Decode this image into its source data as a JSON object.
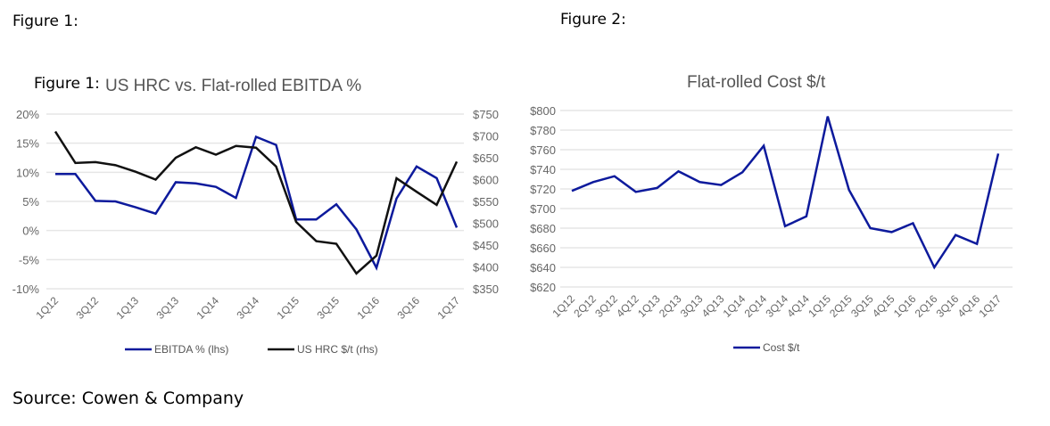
{
  "captions": {
    "fig1": "Figure 1:",
    "fig2": "Figure  2:",
    "fig1_inner": "Figure 1:",
    "source": "Source: Cowen & Company"
  },
  "chart_data": [
    {
      "type": "line",
      "title": "US HRC vs. Flat-rolled EBITDA %",
      "categories": [
        "1Q12",
        "2Q12",
        "3Q12",
        "4Q12",
        "1Q13",
        "2Q13",
        "3Q13",
        "4Q13",
        "1Q14",
        "2Q14",
        "3Q14",
        "4Q14",
        "1Q15",
        "2Q15",
        "3Q15",
        "4Q15",
        "1Q16",
        "2Q16",
        "3Q16",
        "4Q16",
        "1Q17"
      ],
      "tick_labels": [
        "1Q12",
        "3Q12",
        "1Q13",
        "3Q13",
        "1Q14",
        "3Q14",
        "1Q15",
        "3Q15",
        "1Q16",
        "3Q16",
        "1Q17"
      ],
      "y_left": {
        "ylim": [
          -10,
          20
        ],
        "ticks": [
          "-10%",
          "-5%",
          "0%",
          "5%",
          "10%",
          "15%",
          "20%"
        ]
      },
      "y_right": {
        "ylim": [
          350,
          750
        ],
        "ticks": [
          "$350",
          "$400",
          "$450",
          "$500",
          "$550",
          "$600",
          "$650",
          "$700",
          "$750"
        ]
      },
      "grid": true,
      "legend": "bottom",
      "series": [
        {
          "name": "EBITDA % (lhs)",
          "axis": "left",
          "color": "#0d1a9c",
          "values": [
            9.7,
            9.7,
            5.1,
            5.0,
            4.0,
            2.9,
            8.3,
            8.1,
            7.5,
            5.6,
            16.1,
            14.7,
            1.9,
            1.9,
            4.5,
            0.2,
            -6.4,
            5.5,
            11.0,
            9.0,
            0.5
          ]
        },
        {
          "name": "US HRC $/t (rhs)",
          "axis": "right",
          "color": "#111111",
          "values": [
            710,
            638,
            640,
            633,
            618,
            600,
            650,
            674,
            657,
            677,
            673,
            630,
            503,
            459,
            453,
            385,
            426,
            603,
            572,
            542,
            641
          ]
        }
      ]
    },
    {
      "type": "line",
      "title": "Flat-rolled Cost $/t",
      "categories": [
        "1Q12",
        "2Q12",
        "3Q12",
        "4Q12",
        "1Q13",
        "2Q13",
        "3Q13",
        "4Q13",
        "1Q14",
        "2Q14",
        "3Q14",
        "4Q14",
        "1Q15",
        "2Q15",
        "3Q15",
        "4Q15",
        "1Q16",
        "2Q16",
        "3Q16",
        "4Q16",
        "1Q17"
      ],
      "ylim": [
        620,
        800
      ],
      "y_ticks": [
        "$620",
        "$640",
        "$660",
        "$680",
        "$700",
        "$720",
        "$740",
        "$760",
        "$780",
        "$800"
      ],
      "grid": true,
      "legend": "bottom",
      "series": [
        {
          "name": "Cost $/t",
          "color": "#0d1a9c",
          "values": [
            718,
            727,
            733,
            717,
            721,
            738,
            727,
            724,
            737,
            764,
            682,
            692,
            794,
            719,
            680,
            676,
            685,
            640,
            673,
            664,
            756
          ]
        }
      ]
    }
  ]
}
